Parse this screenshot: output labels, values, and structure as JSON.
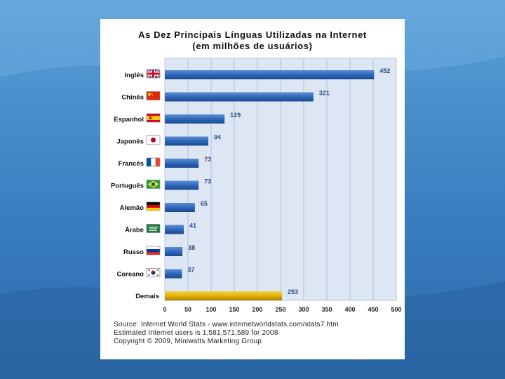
{
  "chart_data": {
    "type": "bar",
    "orientation": "horizontal",
    "title": "As Dez Principais Línguas Utilizadas na Internet",
    "subtitle": "(em milhões de usuários)",
    "categories": [
      "Inglês",
      "Chinês",
      "Espanhol",
      "Japonês",
      "Francês",
      "Português",
      "Alemão",
      "Árabe",
      "Russo",
      "Coreano",
      "Demais"
    ],
    "values": [
      452,
      321,
      129,
      94,
      73,
      73,
      65,
      41,
      38,
      37,
      253
    ],
    "value_labels": [
      "452",
      "321",
      "129",
      "94",
      "73",
      "73",
      "65",
      "41",
      "38",
      "37",
      "253"
    ],
    "flags": [
      "uk-flag-icon",
      "china-flag-icon",
      "spain-flag-icon",
      "japan-flag-icon",
      "france-flag-icon",
      "brazil-flag-icon",
      "germany-flag-icon",
      "saudi-flag-icon",
      "russia-flag-icon",
      "korea-flag-icon",
      ""
    ],
    "bar_colors": {
      "primary": "#2d64b4",
      "highlight": "#e0b000"
    },
    "highlight_category": "Demais",
    "xlim": [
      0,
      500
    ],
    "xticks": [
      0,
      50,
      100,
      150,
      200,
      250,
      300,
      350,
      400,
      450,
      500
    ],
    "grid": true,
    "xlabel": "",
    "ylabel": ""
  },
  "source": {
    "line1": "Source: Internet World Stats - www.internetworldstats.com/stats7.htm",
    "line2": "Estimated Internet users is 1,581,571,589 for 2008",
    "line3": "Copyright © 2009, Miniwatts Marketing Group"
  }
}
